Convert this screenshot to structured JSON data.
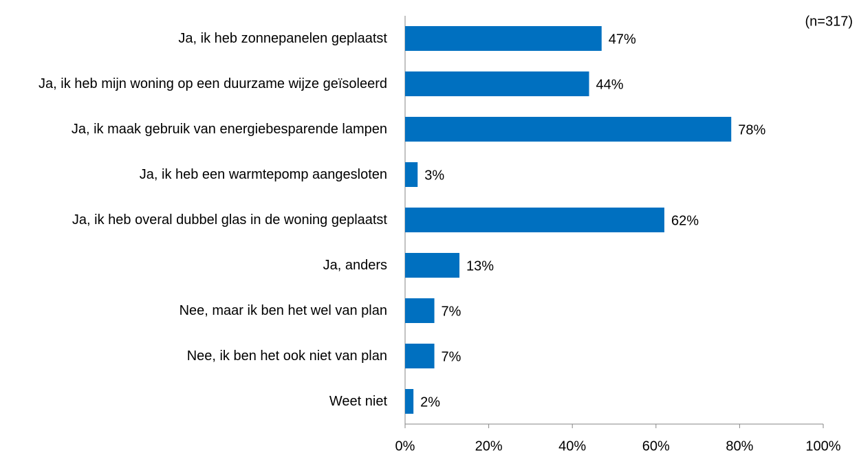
{
  "chart_data": {
    "type": "bar",
    "orientation": "horizontal",
    "annotation": "(n=317)",
    "categories": [
      "Ja, ik heb zonnepanelen geplaatst",
      "Ja, ik heb mijn woning op een duurzame wijze geïsoleerd",
      "Ja, ik maak gebruik van energiebesparende lampen",
      "Ja, ik heb een warmtepomp aangesloten",
      "Ja, ik heb overal dubbel glas in de woning geplaatst",
      "Ja, anders",
      "Nee, maar ik ben het wel van plan",
      "Nee, ik ben het ook niet van plan",
      "Weet niet"
    ],
    "values": [
      47,
      44,
      78,
      3,
      62,
      13,
      7,
      7,
      2
    ],
    "value_labels": [
      "47%",
      "44%",
      "78%",
      "3%",
      "62%",
      "13%",
      "7%",
      "7%",
      "2%"
    ],
    "color": "#0070c0",
    "xlim": [
      0,
      100
    ],
    "xticks": [
      {
        "value": 0,
        "label": "0%"
      },
      {
        "value": 20,
        "label": "20%"
      },
      {
        "value": 40,
        "label": "40%"
      },
      {
        "value": 60,
        "label": "60%"
      },
      {
        "value": 80,
        "label": "80%"
      },
      {
        "value": 100,
        "label": "100%"
      }
    ]
  }
}
